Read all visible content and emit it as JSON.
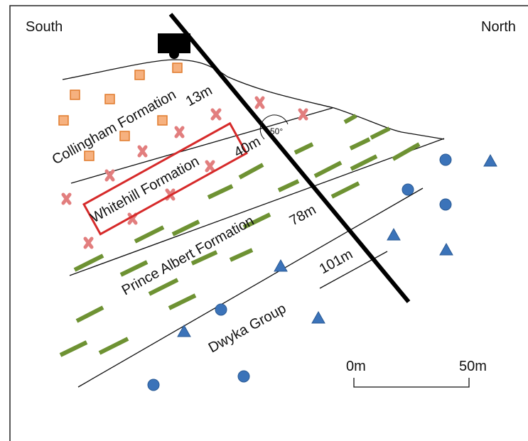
{
  "labels": {
    "south": "South",
    "north": "North",
    "formations": [
      "Collingham Formation",
      "Whitehill Formation",
      "Prince Albert Formation",
      "Dwyka Group"
    ],
    "depths": [
      "13m",
      "40m",
      "78m",
      "101m"
    ],
    "angle": "50°",
    "scale": [
      "0m",
      "50m"
    ]
  }
}
